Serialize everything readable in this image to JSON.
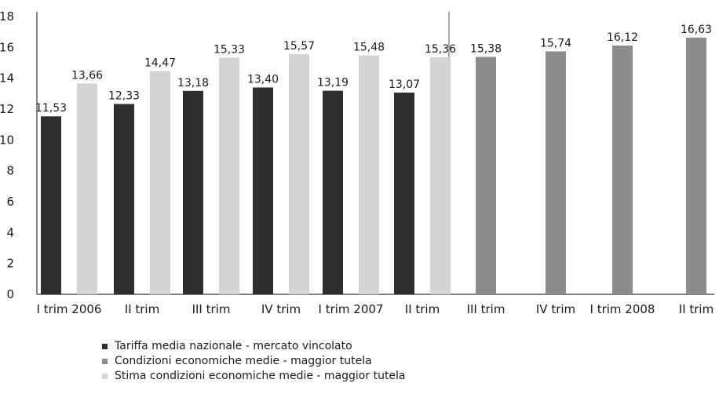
{
  "chart_data": {
    "type": "bar",
    "title": "",
    "xlabel": "",
    "ylabel": "",
    "ylim": [
      0,
      18
    ],
    "yticks": [
      0,
      2,
      4,
      6,
      8,
      10,
      12,
      14,
      16,
      18
    ],
    "grid": false,
    "legend_position": "bottom-left",
    "categories": [
      "I trim 2006",
      "II trim",
      "III trim",
      "IV trim",
      "I trim 2007",
      "II trim",
      "III trim",
      "IV trim",
      "I trim 2008",
      "II trim"
    ],
    "value_labels_decimal_comma": true,
    "series": [
      {
        "name": "Tariffa media nazionale - mercato vincolato",
        "color": "#2e2e2e",
        "values": [
          11.53,
          12.33,
          13.18,
          13.4,
          13.19,
          13.07,
          null,
          null,
          null,
          null
        ],
        "labels": [
          "11,53",
          "12,33",
          "13,18",
          "13,40",
          "13,19",
          "13,07",
          null,
          null,
          null,
          null
        ]
      },
      {
        "name": "Condizioni economiche medie - maggior tutela",
        "color": "#8c8c8c",
        "values": [
          null,
          null,
          null,
          null,
          null,
          null,
          15.38,
          15.74,
          16.12,
          16.63
        ],
        "labels": [
          null,
          null,
          null,
          null,
          null,
          null,
          "15,38",
          "15,74",
          "16,12",
          "16,63"
        ]
      },
      {
        "name": "Stima condizioni economiche medie - maggior tutela",
        "color": "#d4d4d4",
        "values": [
          13.66,
          14.47,
          15.33,
          15.57,
          15.48,
          15.36,
          null,
          null,
          null,
          null
        ],
        "labels": [
          "13,66",
          "14,47",
          "15,33",
          "15,57",
          "15,48",
          "15,36",
          null,
          null,
          null,
          null
        ]
      }
    ],
    "divider_after_category": 5
  }
}
